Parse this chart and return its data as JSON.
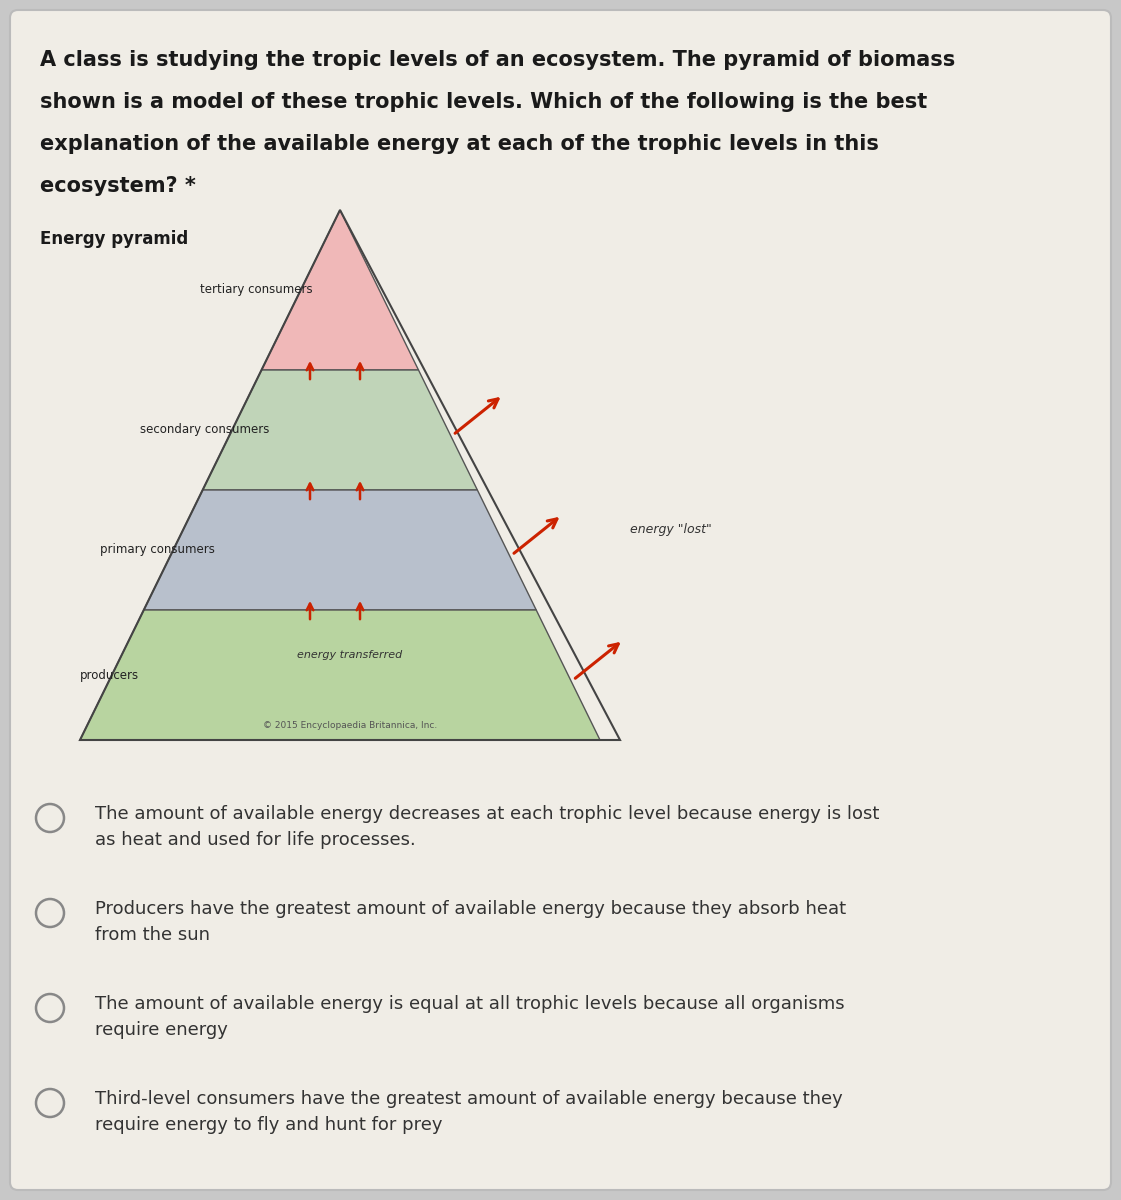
{
  "bg_color": "#c8c8c8",
  "card_color": "#f0ede6",
  "question_text_lines": [
    "A class is studying the tropic levels of an ecosystem. The pyramid of biomass",
    "shown is a model of these trophic levels. Which of the following is the best",
    "explanation of the available energy at each of the trophic levels in this",
    "ecosystem? *"
  ],
  "diagram_title": "Energy pyramid",
  "level_colors": [
    "#f0b8b8",
    "#c0d4b8",
    "#b8c0cc",
    "#b8d4a0"
  ],
  "level_names": [
    "tertiary consumers",
    "secondary consumers",
    "primary consumers",
    "producers"
  ],
  "energy_lost_label": "energy \"lost\"",
  "energy_transferred_label": "energy transferred",
  "copyright_text": "© 2015 Encyclopaedia Britannica, Inc.",
  "answer_options": [
    "The amount of available energy decreases at each trophic level because energy is lost\nas heat and used for life processes.",
    "Producers have the greatest amount of available energy because they absorb heat\nfrom the sun",
    "The amount of available energy is equal at all trophic levels because all organisms\nrequire energy",
    "Third-level consumers have the greatest amount of available energy because they\nrequire energy to fly and hunt for prey"
  ],
  "question_fontsize": 15,
  "answer_fontsize": 13,
  "title_fontsize": 12,
  "label_fontsize": 8.5
}
